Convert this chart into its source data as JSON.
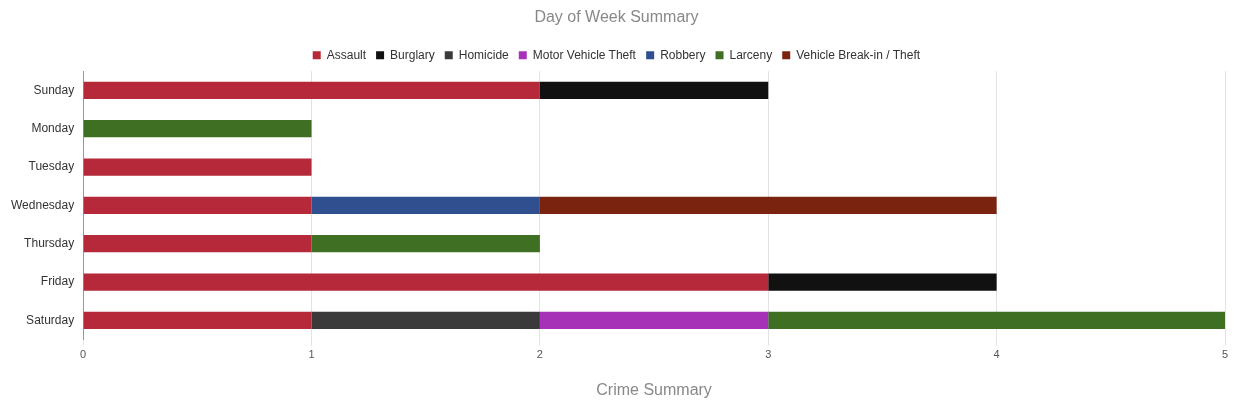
{
  "chart_data": {
    "type": "bar",
    "orientation": "horizontal",
    "stacked": true,
    "title": "Day of Week Summary",
    "xlabel": "Crime Summary",
    "categories": [
      "Sunday",
      "Monday",
      "Tuesday",
      "Wednesday",
      "Thursday",
      "Friday",
      "Saturday"
    ],
    "series": [
      {
        "name": "Assault",
        "color": "#b5293a",
        "values": [
          2,
          null,
          1,
          1,
          1,
          3,
          1
        ]
      },
      {
        "name": "Burglary",
        "color": "#111111",
        "values": [
          1,
          null,
          null,
          null,
          null,
          1,
          null
        ]
      },
      {
        "name": "Homicide",
        "color": "#3a3a3a",
        "values": [
          null,
          null,
          null,
          null,
          null,
          null,
          1
        ]
      },
      {
        "name": "Motor Vehicle Theft",
        "color": "#a632b8",
        "values": [
          null,
          null,
          null,
          null,
          null,
          null,
          1
        ]
      },
      {
        "name": "Robbery",
        "color": "#2f4f8f",
        "values": [
          null,
          null,
          null,
          1,
          null,
          null,
          null
        ]
      },
      {
        "name": "Larceny",
        "color": "#3f6f22",
        "values": [
          null,
          1,
          null,
          null,
          1,
          null,
          2
        ]
      },
      {
        "name": "Vehicle Break-in / Theft",
        "color": "#7a2410",
        "values": [
          null,
          null,
          null,
          2,
          null,
          null,
          null
        ]
      }
    ],
    "xlim": [
      0,
      5
    ],
    "xticks": [
      0,
      1,
      2,
      3,
      4,
      5
    ],
    "grid": "x",
    "legend": "top"
  }
}
